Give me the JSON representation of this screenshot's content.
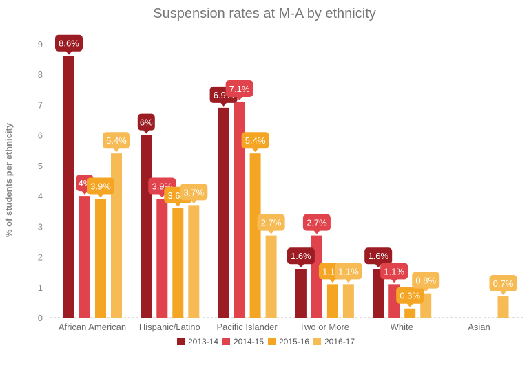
{
  "chart_data": {
    "type": "bar",
    "title": "Suspension rates at M-A by ethnicity",
    "xlabel": "",
    "ylabel": "% of students per ethnicity",
    "ylim": [
      0,
      9
    ],
    "yticks": [
      "0",
      "1",
      "2",
      "3",
      "4",
      "5",
      "6",
      "7",
      "8",
      "9"
    ],
    "grid": false,
    "legend_position": "bottom",
    "categories": [
      "African American",
      "Hispanic/Latino",
      "Pacific Islander",
      "Two or More",
      "White",
      "Asian"
    ],
    "series": [
      {
        "name": "2013-14",
        "color": "#9b1c22",
        "values": [
          8.6,
          6,
          6.9,
          1.6,
          1.6,
          null
        ],
        "labels": [
          "8.6%",
          "6%",
          "6.9%",
          "1.6%",
          "1.6%",
          null
        ]
      },
      {
        "name": "2014-15",
        "color": "#e0434b",
        "values": [
          4,
          3.9,
          7.1,
          2.7,
          1.1,
          null
        ],
        "labels": [
          "4%",
          "3.9%",
          "7.1%",
          "2.7%",
          "1.1%",
          null
        ]
      },
      {
        "name": "2015-16",
        "color": "#f5a524",
        "values": [
          3.9,
          3.6,
          5.4,
          1.1,
          0.3,
          null
        ],
        "labels": [
          "3.9%",
          "3.6%",
          "5.4%",
          "1.1%",
          "0.3%",
          null
        ]
      },
      {
        "name": "2016-17",
        "color": "#f7bb55",
        "values": [
          5.4,
          3.7,
          2.7,
          1.1,
          0.8,
          0.7
        ],
        "labels": [
          "5.4%",
          "3.7%",
          "2.7%",
          "1.1%",
          "0.8%",
          "0.7%"
        ]
      }
    ]
  }
}
